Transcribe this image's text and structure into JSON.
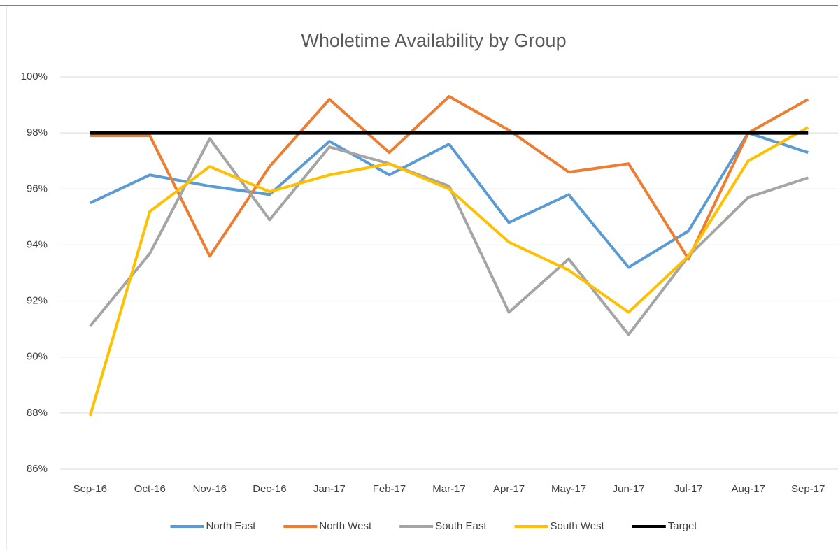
{
  "chart_data": {
    "type": "line",
    "title": "Wholetime Availability by Group",
    "categories": [
      "Sep-16",
      "Oct-16",
      "Nov-16",
      "Dec-16",
      "Jan-17",
      "Feb-17",
      "Mar-17",
      "Apr-17",
      "May-17",
      "Jun-17",
      "Jul-17",
      "Aug-17",
      "Sep-17"
    ],
    "series": [
      {
        "name": "North East",
        "color": "#5b9bd5",
        "values": [
          95.5,
          96.5,
          96.1,
          95.8,
          97.7,
          96.5,
          97.6,
          94.8,
          95.8,
          93.2,
          94.5,
          98.0,
          97.3
        ]
      },
      {
        "name": "North West",
        "color": "#ed7d31",
        "values": [
          97.9,
          97.9,
          93.6,
          96.8,
          99.2,
          97.3,
          99.3,
          98.1,
          96.6,
          96.9,
          93.5,
          98.0,
          99.2
        ]
      },
      {
        "name": "South East",
        "color": "#a5a5a5",
        "values": [
          91.1,
          93.7,
          97.8,
          94.9,
          97.5,
          96.9,
          96.1,
          91.6,
          93.5,
          90.8,
          93.6,
          95.7,
          96.4
        ]
      },
      {
        "name": "South West",
        "color": "#ffc000",
        "values": [
          87.9,
          95.2,
          96.8,
          95.9,
          96.5,
          96.9,
          96.0,
          94.1,
          93.1,
          91.6,
          93.6,
          97.0,
          98.2
        ]
      },
      {
        "name": "Target",
        "color": "#000000",
        "values": [
          98,
          98,
          98,
          98,
          98,
          98,
          98,
          98,
          98,
          98,
          98,
          98,
          98
        ]
      }
    ],
    "ylim": [
      86,
      100
    ],
    "yticks": [
      {
        "value": 86,
        "label": "86%"
      },
      {
        "value": 88,
        "label": "88%"
      },
      {
        "value": 90,
        "label": "90%"
      },
      {
        "value": 92,
        "label": "92%"
      },
      {
        "value": 94,
        "label": "94%"
      },
      {
        "value": 96,
        "label": "96%"
      },
      {
        "value": 98,
        "label": "98%"
      },
      {
        "value": 100,
        "label": "100%"
      }
    ],
    "grid": true,
    "legend": "bottom"
  }
}
